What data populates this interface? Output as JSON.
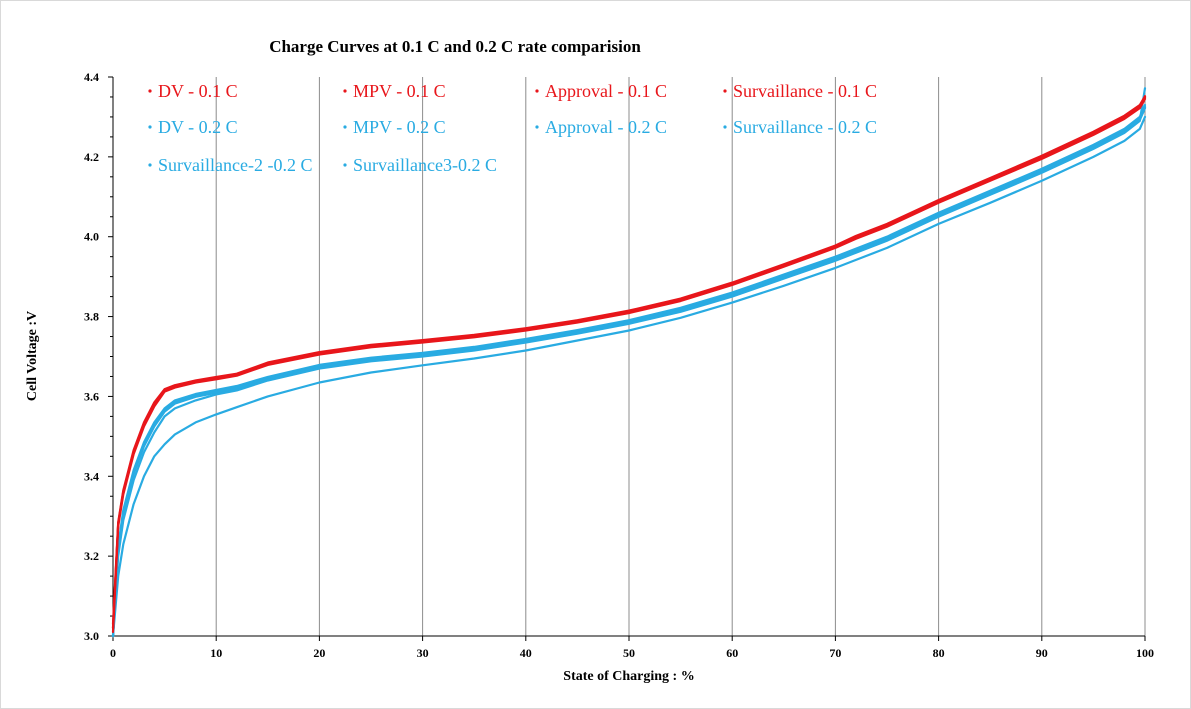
{
  "chart_data": {
    "type": "line",
    "title": "Charge Curves at 0.1 C and 0.2 C rate comparision",
    "xlabel": "State of Charging : %",
    "ylabel": "Cell Voltage :V",
    "xlim": [
      0,
      100
    ],
    "ylim": [
      3.0,
      4.4
    ],
    "xticks": [
      "0",
      "10",
      "20",
      "30",
      "40",
      "50",
      "60",
      "70",
      "80",
      "90",
      "100"
    ],
    "yticks": [
      "3.0",
      "3.2",
      "3.4",
      "3.6",
      "3.8",
      "4.0",
      "4.2",
      "4.4"
    ],
    "grid": "vertical",
    "legend_position": "top-left inside",
    "colors": {
      "rate_0_1C": "#e8161b",
      "rate_0_2C": "#29abe2"
    },
    "x": [
      0,
      0.5,
      1,
      2,
      3,
      4,
      5,
      6,
      8,
      10,
      12,
      15,
      20,
      25,
      30,
      35,
      40,
      45,
      50,
      55,
      60,
      65,
      70,
      72,
      75,
      80,
      85,
      90,
      95,
      98,
      99.5,
      100
    ],
    "series": [
      {
        "name": "DV - 0.1 C",
        "color": "#e8161b",
        "values": [
          3.02,
          3.28,
          3.36,
          3.46,
          3.53,
          3.58,
          3.615,
          3.625,
          3.638,
          3.646,
          3.655,
          3.682,
          3.708,
          3.726,
          3.738,
          3.751,
          3.768,
          3.788,
          3.812,
          3.842,
          3.882,
          3.928,
          3.975,
          3.998,
          4.028,
          4.088,
          4.143,
          4.198,
          4.258,
          4.298,
          4.325,
          4.348
        ]
      },
      {
        "name": "MPV - 0.1 C",
        "color": "#e8161b",
        "values": [
          3.03,
          3.285,
          3.365,
          3.465,
          3.535,
          3.585,
          3.618,
          3.628,
          3.64,
          3.649,
          3.657,
          3.685,
          3.711,
          3.729,
          3.741,
          3.754,
          3.771,
          3.791,
          3.815,
          3.845,
          3.885,
          3.931,
          3.978,
          4.002,
          4.032,
          4.092,
          4.147,
          4.203,
          4.263,
          4.303,
          4.33,
          4.352
        ]
      },
      {
        "name": "Approval - 0.1 C",
        "color": "#e8161b",
        "values": [
          3.01,
          3.275,
          3.355,
          3.455,
          3.525,
          3.575,
          3.612,
          3.622,
          3.635,
          3.643,
          3.652,
          3.679,
          3.705,
          3.723,
          3.735,
          3.748,
          3.765,
          3.785,
          3.809,
          3.839,
          3.879,
          3.925,
          3.972,
          3.995,
          4.025,
          4.085,
          4.14,
          4.195,
          4.255,
          4.295,
          4.322,
          4.345
        ]
      },
      {
        "name": "Survaillance - 0.1 C",
        "color": "#e8161b",
        "values": [
          3.02,
          3.282,
          3.362,
          3.462,
          3.532,
          3.582,
          3.616,
          3.626,
          3.639,
          3.647,
          3.656,
          3.683,
          3.709,
          3.727,
          3.739,
          3.752,
          3.769,
          3.789,
          3.813,
          3.843,
          3.883,
          3.929,
          3.976,
          4.0,
          4.03,
          4.09,
          4.145,
          4.2,
          4.26,
          4.3,
          4.328,
          4.35
        ]
      },
      {
        "name": "DV - 0.2 C",
        "color": "#29abe2",
        "values": [
          3.0,
          3.22,
          3.31,
          3.41,
          3.48,
          3.53,
          3.565,
          3.585,
          3.602,
          3.612,
          3.622,
          3.645,
          3.675,
          3.693,
          3.705,
          3.72,
          3.74,
          3.762,
          3.787,
          3.818,
          3.855,
          3.9,
          3.945,
          3.965,
          3.995,
          4.055,
          4.11,
          4.165,
          4.225,
          4.265,
          4.295,
          4.325
        ]
      },
      {
        "name": "MPV - 0.2 C",
        "color": "#29abe2",
        "values": [
          3.0,
          3.225,
          3.315,
          3.415,
          3.485,
          3.535,
          3.57,
          3.59,
          3.606,
          3.616,
          3.626,
          3.649,
          3.679,
          3.697,
          3.709,
          3.724,
          3.744,
          3.766,
          3.791,
          3.822,
          3.86,
          3.905,
          3.95,
          3.97,
          4.0,
          4.06,
          4.115,
          4.17,
          4.23,
          4.27,
          4.3,
          4.33
        ]
      },
      {
        "name": "Approval - 0.2 C",
        "color": "#29abe2",
        "values": [
          3.0,
          3.215,
          3.305,
          3.405,
          3.475,
          3.525,
          3.562,
          3.582,
          3.599,
          3.609,
          3.619,
          3.642,
          3.672,
          3.69,
          3.702,
          3.717,
          3.737,
          3.759,
          3.784,
          3.815,
          3.852,
          3.897,
          3.942,
          3.962,
          3.992,
          4.052,
          4.107,
          4.162,
          4.222,
          4.262,
          4.292,
          4.322
        ]
      },
      {
        "name": "Survaillance - 0.2 C",
        "color": "#29abe2",
        "values": [
          3.0,
          3.218,
          3.308,
          3.408,
          3.478,
          3.528,
          3.564,
          3.584,
          3.601,
          3.611,
          3.621,
          3.644,
          3.674,
          3.692,
          3.704,
          3.719,
          3.739,
          3.761,
          3.786,
          3.817,
          3.854,
          3.899,
          3.944,
          3.964,
          3.994,
          4.054,
          4.109,
          4.164,
          4.224,
          4.264,
          4.294,
          4.324
        ]
      },
      {
        "name": "Survaillance-2 -0.2 C",
        "color": "#29abe2",
        "values": [
          3.0,
          3.2,
          3.29,
          3.39,
          3.46,
          3.51,
          3.55,
          3.57,
          3.59,
          3.605,
          3.615,
          3.64,
          3.67,
          3.688,
          3.7,
          3.715,
          3.735,
          3.757,
          3.782,
          3.812,
          3.85,
          3.895,
          3.94,
          3.96,
          3.99,
          4.05,
          4.105,
          4.16,
          4.22,
          4.26,
          4.29,
          4.372
        ]
      },
      {
        "name": "Survaillance3-0.2 C",
        "color": "#29abe2",
        "values": [
          3.0,
          3.15,
          3.23,
          3.33,
          3.4,
          3.45,
          3.48,
          3.505,
          3.535,
          3.555,
          3.573,
          3.6,
          3.635,
          3.66,
          3.678,
          3.695,
          3.715,
          3.74,
          3.765,
          3.797,
          3.835,
          3.877,
          3.922,
          3.942,
          3.972,
          4.032,
          4.085,
          4.14,
          4.2,
          4.24,
          4.27,
          4.3
        ]
      }
    ]
  }
}
